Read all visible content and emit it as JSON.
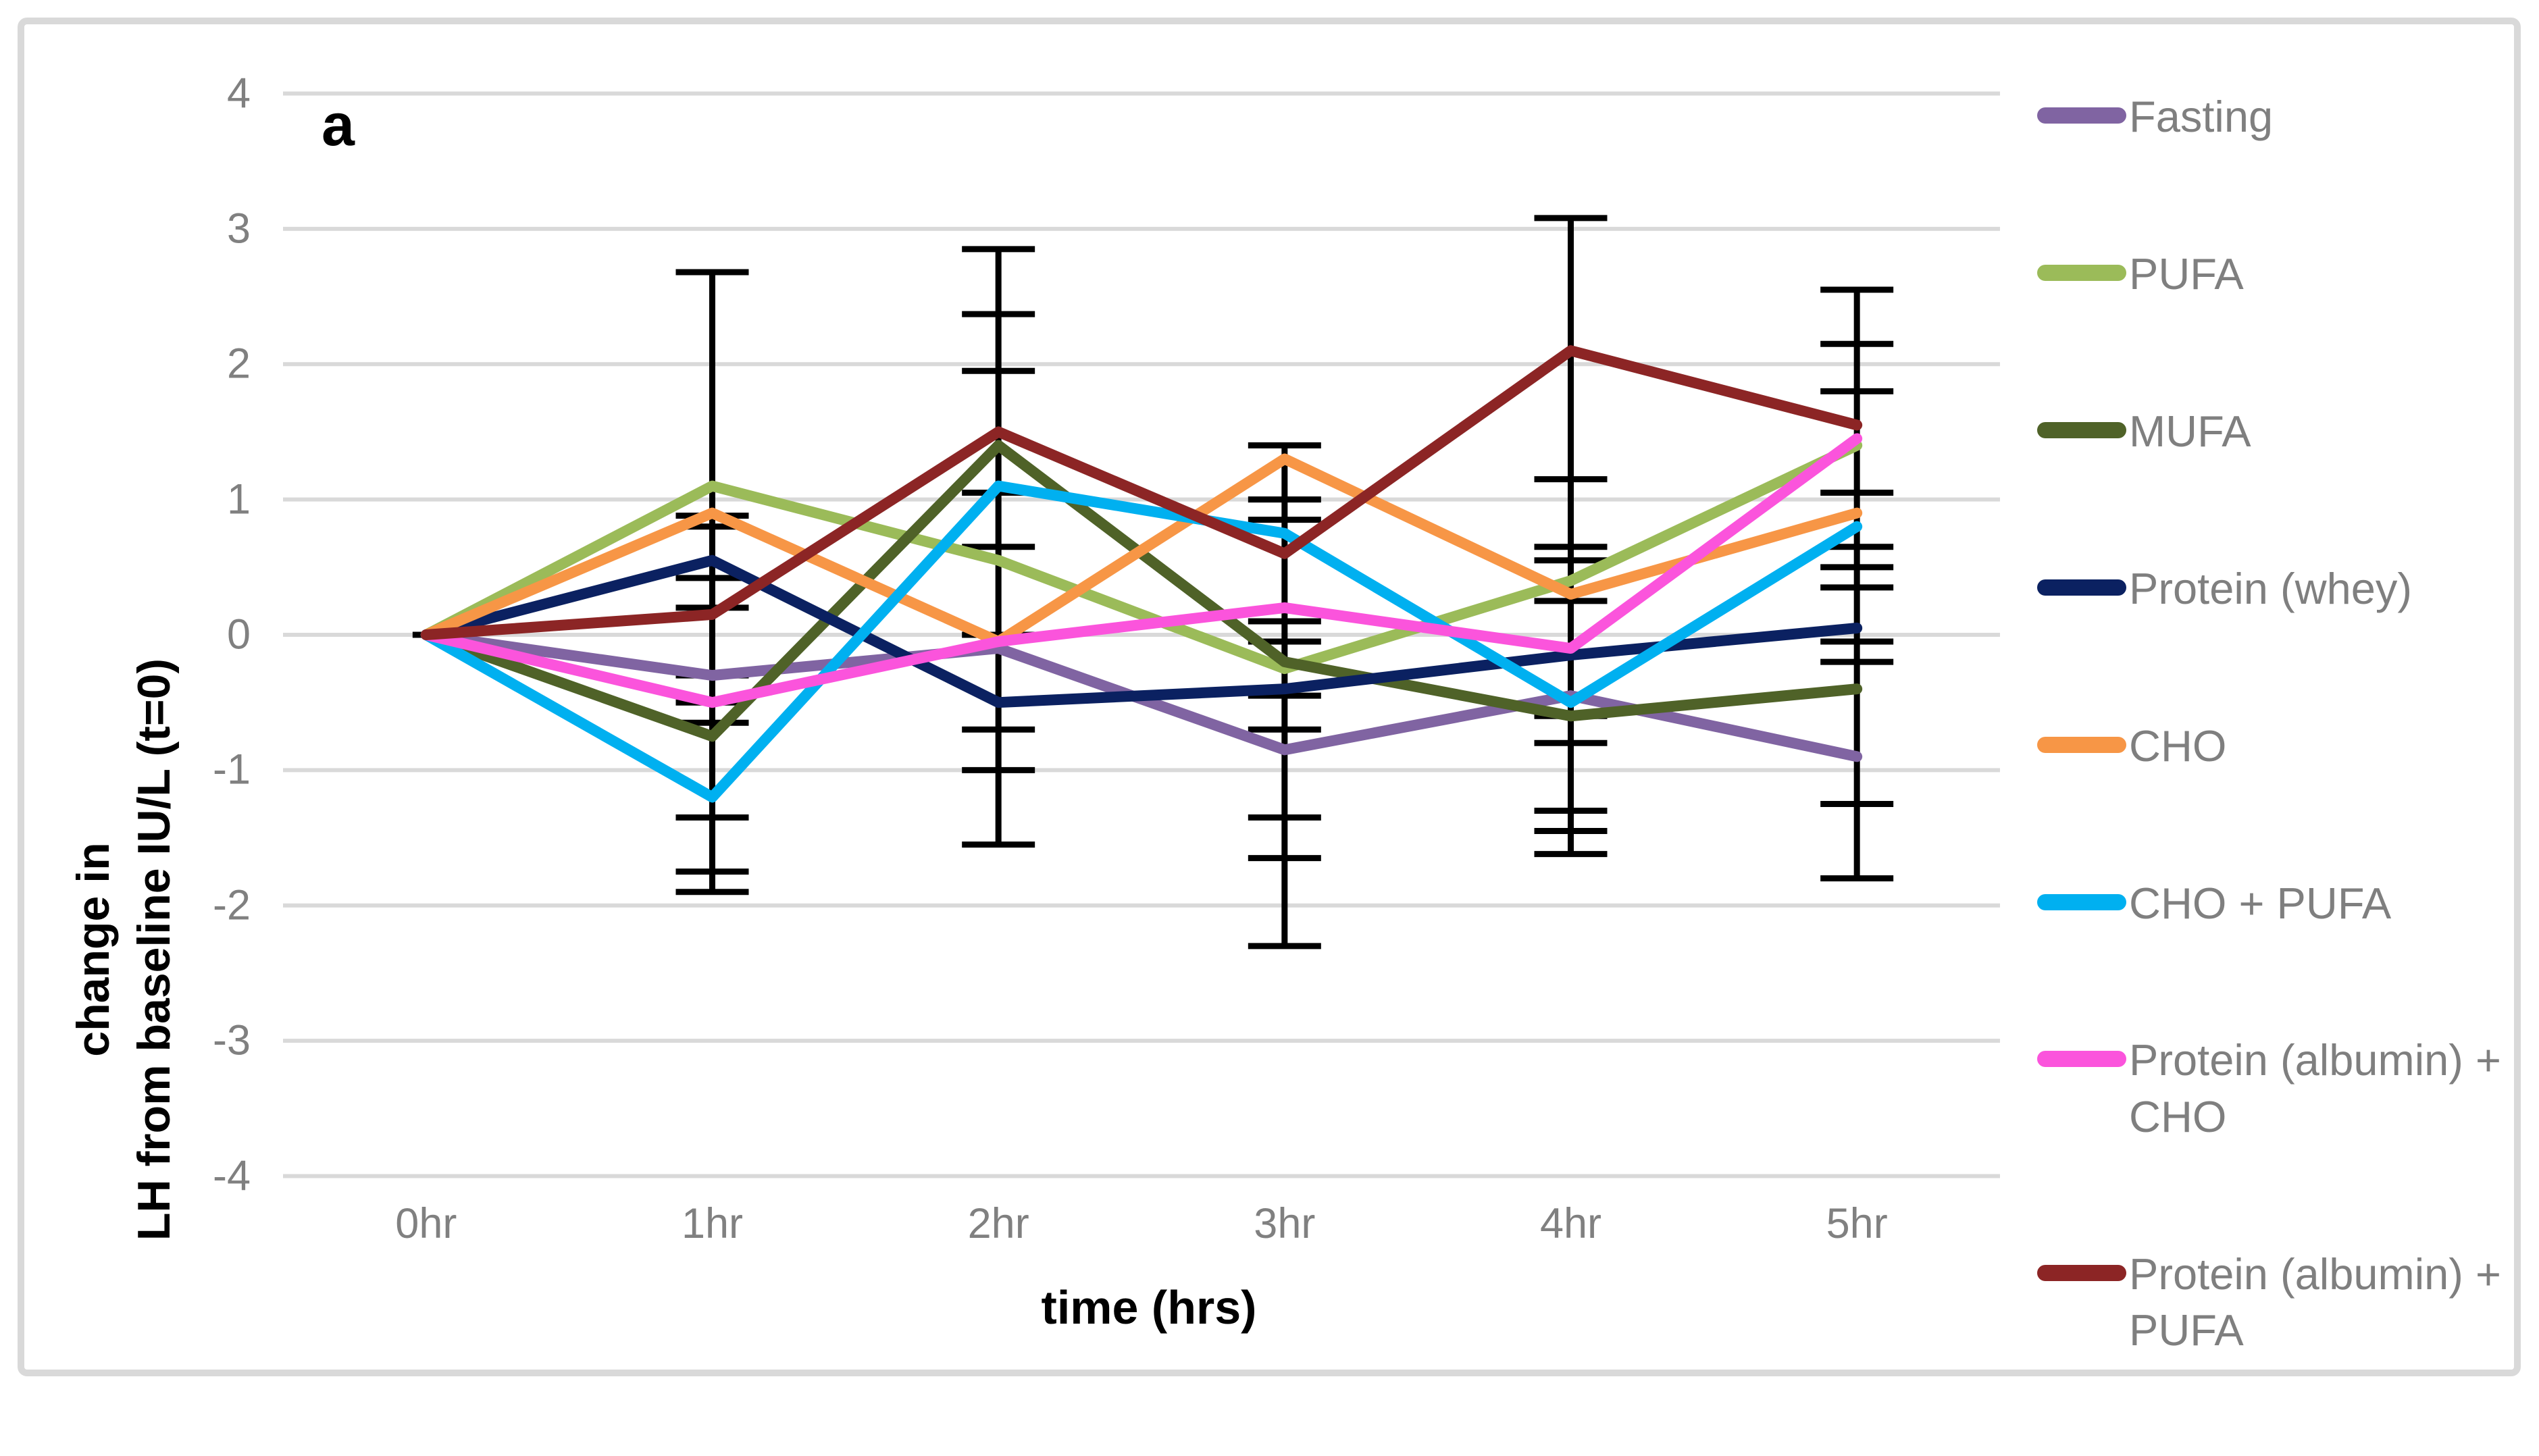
{
  "figure": {
    "background": "#FFFFFF",
    "frame_border_color": "#D9D9D9"
  },
  "chart_data": {
    "type": "line",
    "panel_label": "a",
    "title": "",
    "xlabel": "time (hrs)",
    "ylabel_lines": [
      "change in",
      "LH from baseline IU/L (t=0)"
    ],
    "categories": [
      "0hr",
      "1hr",
      "2hr",
      "3hr",
      "4hr",
      "5hr"
    ],
    "yticks": [
      "4",
      "3",
      "2",
      "1",
      "0",
      "-1",
      "-2",
      "-3",
      "-4"
    ],
    "ylim": [
      -4,
      4
    ],
    "grid": "horizontal",
    "legend_position": "right",
    "series": [
      {
        "name": "Fasting",
        "color": "#8064A2",
        "values": [
          0,
          -0.3,
          -0.1,
          -0.85,
          -0.45,
          -0.9
        ],
        "legend_lines": [
          "Fasting"
        ]
      },
      {
        "name": "PUFA",
        "color": "#9BBB59",
        "values": [
          0,
          1.1,
          0.55,
          -0.25,
          0.4,
          1.4
        ],
        "legend_lines": [
          "PUFA"
        ]
      },
      {
        "name": "MUFA",
        "color": "#4F6228",
        "values": [
          0,
          -0.75,
          1.4,
          -0.2,
          -0.6,
          -0.4
        ],
        "legend_lines": [
          "MUFA"
        ]
      },
      {
        "name": "Protein (whey)",
        "color": "#0B2161",
        "values": [
          0,
          0.55,
          -0.5,
          -0.4,
          -0.15,
          0.05
        ],
        "legend_lines": [
          "Protein (whey)"
        ]
      },
      {
        "name": "CHO",
        "color": "#F79646",
        "values": [
          0,
          0.9,
          -0.05,
          1.3,
          0.3,
          0.9
        ],
        "legend_lines": [
          "CHO"
        ]
      },
      {
        "name": "CHO + PUFA",
        "color": "#00B0F0",
        "values": [
          0,
          -1.2,
          1.1,
          0.75,
          -0.5,
          0.8
        ],
        "legend_lines": [
          "CHO + PUFA"
        ]
      },
      {
        "name": "Protein (albumin) + CHO",
        "color": "#FB54DC",
        "values": [
          0,
          -0.5,
          -0.05,
          0.2,
          -0.1,
          1.45
        ],
        "legend_lines": [
          "Protein (albumin) +",
          "CHO"
        ]
      },
      {
        "name": "Protein (albumin) + PUFA",
        "color": "#8C2525",
        "values": [
          0,
          0.15,
          1.5,
          0.6,
          2.1,
          1.55
        ],
        "legend_lines": [
          "Protein (albumin) +",
          "PUFA"
        ]
      }
    ],
    "error_bars": [
      {
        "t": 0,
        "span": [
          0,
          0
        ],
        "caps": [
          0
        ]
      },
      {
        "t": 1,
        "span": [
          2.68,
          -1.9
        ],
        "caps": [
          2.68,
          0.88,
          0.8,
          0.42,
          0.2,
          -0.3,
          -0.5,
          -0.65,
          -1.35,
          -1.75,
          -1.9
        ]
      },
      {
        "t": 2,
        "span": [
          2.85,
          -1.55
        ],
        "caps": [
          2.85,
          2.37,
          1.95,
          1.05,
          0.65,
          0,
          -0.7,
          -1.0,
          -1.55
        ]
      },
      {
        "t": 3,
        "span": [
          1.4,
          -2.3
        ],
        "caps": [
          1.4,
          1.0,
          0.85,
          0.1,
          -0.05,
          -0.45,
          -0.7,
          -1.35,
          -1.65,
          -2.3
        ]
      },
      {
        "t": 4,
        "span": [
          3.08,
          -1.62
        ],
        "caps": [
          3.08,
          1.15,
          0.65,
          0.55,
          0.25,
          -0.6,
          -0.8,
          -1.3,
          -1.45,
          -1.62
        ]
      },
      {
        "t": 5,
        "span": [
          2.55,
          -1.8
        ],
        "caps": [
          2.55,
          2.15,
          1.8,
          1.05,
          0.65,
          0.5,
          0.35,
          -0.05,
          -0.2,
          -1.25,
          -1.8
        ]
      }
    ],
    "colors": {
      "gridline": "#D9D9D9",
      "tick_label": "#808080",
      "legend_text": "#7F7F7F",
      "axis_title": "#000000",
      "error_bar": "#000000"
    }
  }
}
